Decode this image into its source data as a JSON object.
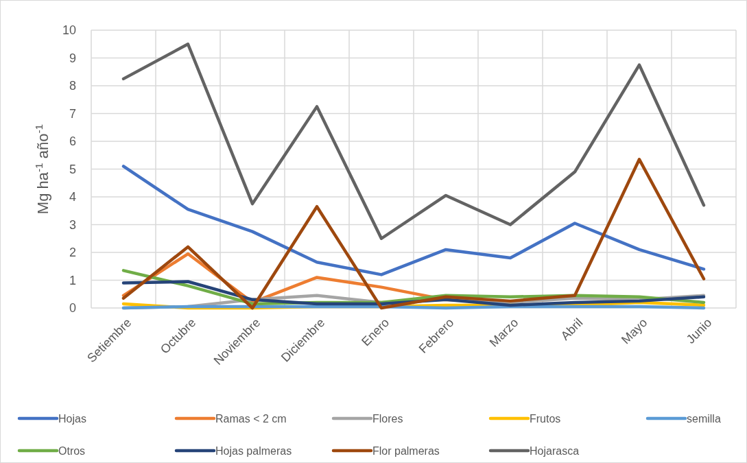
{
  "chart_data": {
    "type": "line",
    "ylabel": "Mg ha$^{-1}$ año$^{-1}$",
    "categories": [
      "Setiembre",
      "Octubre",
      "Noviembre",
      "Diciembre",
      "Enero",
      "Febrero",
      "Marzo",
      "Abril",
      "Mayo",
      "Junio"
    ],
    "ylim": [
      0,
      10
    ],
    "yticks": [
      0,
      1,
      2,
      3,
      4,
      5,
      6,
      7,
      8,
      9,
      10
    ],
    "grid": true,
    "legend": "bottom",
    "line_style": "solid",
    "marker": "none",
    "series": [
      {
        "name": "Hojas",
        "color": "#4472c4",
        "values": [
          5.1,
          3.55,
          2.75,
          1.65,
          1.2,
          2.1,
          1.8,
          3.05,
          2.1,
          1.4
        ]
      },
      {
        "name": "Ramas < 2 cm",
        "color": "#ed7d31",
        "values": [
          0.45,
          1.95,
          0.2,
          1.1,
          0.75,
          0.3,
          0.2,
          null,
          null,
          null
        ]
      },
      {
        "name": "Flores",
        "color": "#a5a5a5",
        "values": [
          0.0,
          0.05,
          0.3,
          0.45,
          0.2,
          0.3,
          0.2,
          0.35,
          0.3,
          0.45
        ]
      },
      {
        "name": "Frutos",
        "color": "#ffc000",
        "values": [
          0.15,
          0.0,
          0.0,
          0.05,
          0.05,
          0.1,
          0.1,
          0.1,
          0.2,
          0.1
        ]
      },
      {
        "name": "semilla",
        "color": "#5b9bd5",
        "values": [
          0.0,
          0.05,
          0.05,
          0.05,
          0.05,
          0.0,
          0.05,
          0.05,
          0.05,
          0.0
        ]
      },
      {
        "name": "Otros",
        "color": "#70ad47",
        "values": [
          1.35,
          0.8,
          0.15,
          0.2,
          0.2,
          0.45,
          0.4,
          0.45,
          0.4,
          0.2
        ]
      },
      {
        "name": "Hojas palmeras",
        "color": "#264478",
        "values": [
          0.9,
          0.95,
          0.3,
          0.15,
          0.15,
          0.3,
          0.1,
          0.2,
          0.25,
          0.4
        ]
      },
      {
        "name": "Flor palmeras",
        "color": "#9e480e",
        "values": [
          0.35,
          2.2,
          0.0,
          3.65,
          0.0,
          0.4,
          0.25,
          0.45,
          5.35,
          1.05
        ]
      },
      {
        "name": "Hojarasca",
        "color": "#636363",
        "values": [
          8.25,
          9.5,
          3.75,
          7.25,
          2.5,
          4.05,
          3.0,
          4.9,
          8.75,
          3.7
        ]
      }
    ]
  }
}
